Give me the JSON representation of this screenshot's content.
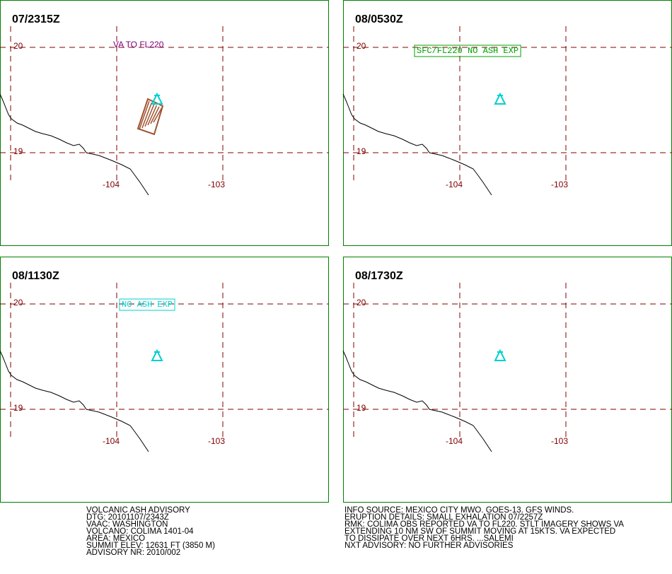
{
  "panels": [
    {
      "time": "07/2315Z",
      "lat_labels": [
        "20",
        "19"
      ],
      "lon_labels": [
        "-104",
        "-103"
      ],
      "annotation": "VA TO FL220"
    },
    {
      "time": "08/0530Z",
      "lat_labels": [
        "20",
        "19"
      ],
      "lon_labels": [
        "-104",
        "-103"
      ],
      "annotation": "SFC/FL220 NO ASH EXP"
    },
    {
      "time": "08/1130Z",
      "lat_labels": [
        "20",
        "19"
      ],
      "lon_labels": [
        "-104",
        "-103"
      ],
      "annotation": "NO ASH EXP"
    },
    {
      "time": "08/1730Z",
      "lat_labels": [
        "20",
        "19"
      ],
      "lon_labels": [
        "-104",
        "-103"
      ]
    }
  ],
  "info_left": [
    "VOLCANIC ASH ADVISORY",
    "DTG: 20101107/2343Z",
    "VAAC: WASHINGTON",
    "VOLCANO: COLIMA 1401-04",
    "AREA: MEXICO",
    "SUMMIT ELEV: 12631 FT (3850 M)",
    "ADVISORY NR: 2010/002"
  ],
  "info_right": [
    "INFO SOURCE: MEXICO CITY MWO. GOES-13. GFS WINDS.",
    "ERUPTION DETAILS: SMALL EXHALATION 07/2257Z",
    "RMK: COLIMA OBS REPORTED VA TO FL220. STLT IMAGERY SHOWS VA",
    "EXTENDING 10 NM SW OF SUMMIT MOVING AT 15KTS. VA EXPECTED",
    "TO DISSIPATE OVER NEXT 6HRS. ...SALEMI",
    "NXT ADVISORY: NO FURTHER ADVISORIES"
  ]
}
